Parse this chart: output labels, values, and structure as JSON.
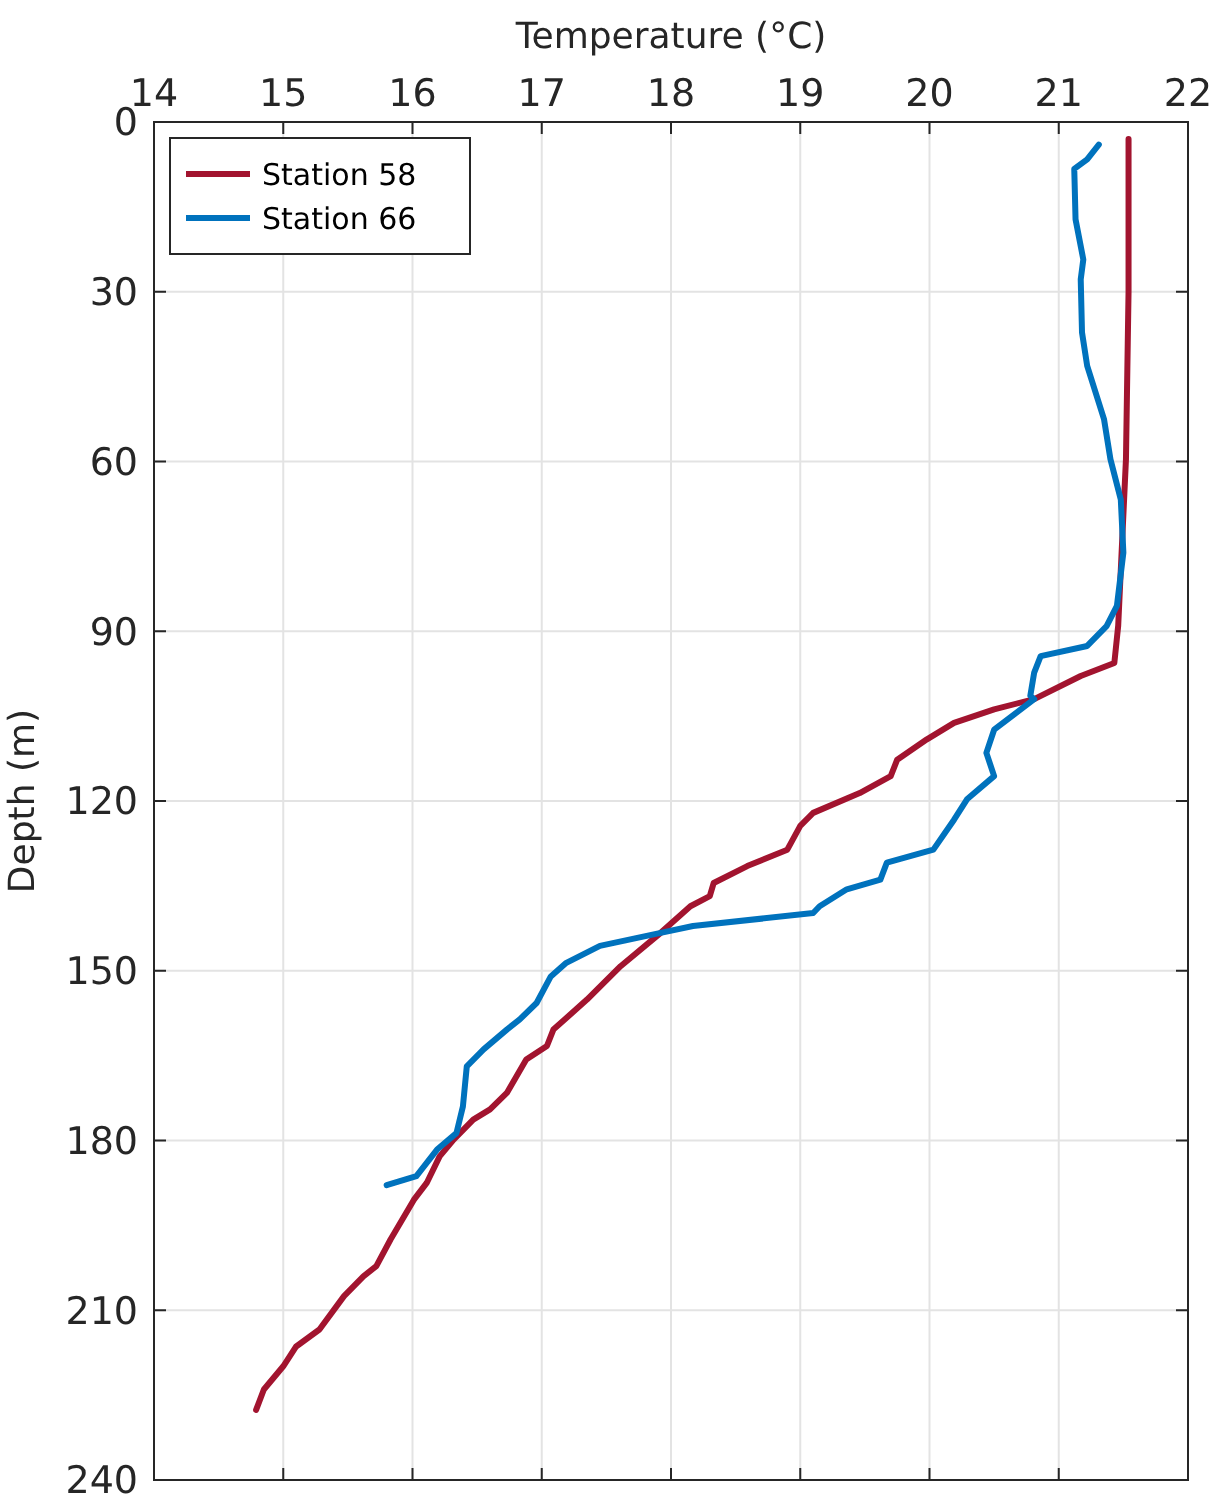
{
  "chart_data": {
    "type": "line",
    "xlabel": "Temperature (°C)",
    "ylabel": "Depth (m)",
    "xlim": [
      14,
      22
    ],
    "xticks": [
      14,
      15,
      16,
      17,
      18,
      19,
      20,
      21,
      22
    ],
    "ylim": [
      240,
      0
    ],
    "yticks": [
      0,
      30,
      60,
      90,
      120,
      150,
      180,
      210,
      240
    ],
    "grid": true,
    "legend": "top left",
    "line_style": "solid",
    "marker": "none",
    "series": [
      {
        "name": "Station 58",
        "color": "#a2142f",
        "x": [
          21.54,
          21.54,
          21.52,
          21.46,
          21.43,
          21.17,
          20.81,
          20.5,
          20.19,
          19.98,
          19.75,
          19.7,
          19.46,
          19.1,
          19.0,
          18.9,
          18.59,
          18.33,
          18.3,
          18.15,
          17.92,
          17.61,
          17.35,
          17.09,
          17.04,
          16.88,
          16.73,
          16.6,
          16.47,
          16.32,
          16.21,
          16.11,
          16.01,
          15.83,
          15.72,
          15.62,
          15.47,
          15.28,
          15.1,
          15.0,
          14.85,
          14.79
        ],
        "values": [
          3,
          30,
          59.6,
          89,
          95.6,
          97.9,
          102,
          103.8,
          106.2,
          109.1,
          112.7,
          115.6,
          118.6,
          122.1,
          124.4,
          128.6,
          131.5,
          134.5,
          136.8,
          138.6,
          143.3,
          149.2,
          155.1,
          160.4,
          163.3,
          165.7,
          171.6,
          174.5,
          176.3,
          179.8,
          182.8,
          187.5,
          190.5,
          197.5,
          202.2,
          204,
          207.5,
          213.4,
          216.4,
          219.9,
          224,
          227.6
        ]
      },
      {
        "name": "Station 66",
        "color": "#0072bd",
        "x": [
          21.31,
          21.22,
          21.12,
          21.13,
          21.19,
          21.17,
          21.18,
          21.22,
          21.35,
          21.4,
          21.48,
          21.5,
          21.45,
          21.37,
          21.22,
          20.86,
          20.81,
          20.78,
          20.81,
          20.5,
          20.44,
          20.5,
          20.29,
          20.19,
          20.03,
          19.67,
          19.62,
          19.36,
          19.15,
          19.1,
          18.17,
          17.92,
          17.45,
          17.19,
          17.07,
          16.96,
          16.83,
          16.73,
          16.55,
          16.42,
          16.39,
          16.34,
          16.19,
          16.03,
          15.8
        ],
        "values": [
          4,
          6.6,
          8.3,
          17.2,
          24.3,
          27.8,
          37.2,
          43.1,
          52.5,
          59.6,
          66.7,
          76.1,
          85.5,
          89.1,
          92.6,
          94.4,
          97.3,
          101.4,
          102,
          107.4,
          111.5,
          115.6,
          119.7,
          123.3,
          128.6,
          130.9,
          133.9,
          135.6,
          138.6,
          139.8,
          142.1,
          143.3,
          145.6,
          148.6,
          151,
          155.7,
          158.6,
          160.4,
          163.9,
          166.9,
          174,
          178.7,
          181.6,
          186.3,
          187.9
        ]
      }
    ]
  }
}
